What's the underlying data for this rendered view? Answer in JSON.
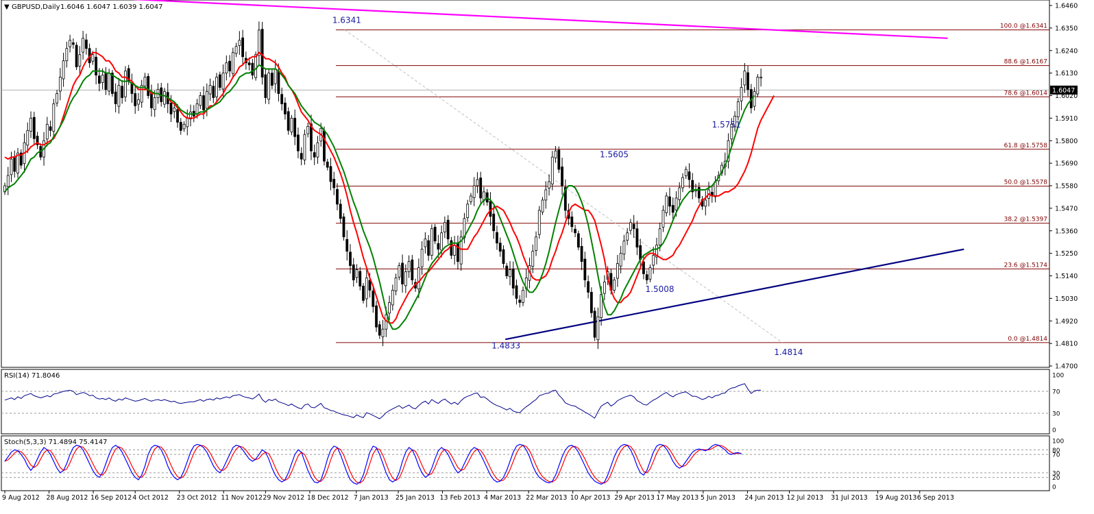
{
  "header": {
    "symbol_text": "GBPUSD,Daily",
    "ohlc_text": "1.6046 1.6047 1.6039 1.6047",
    "rsi_title": "RSI(14) 71.8046",
    "stoch_title": "Stoch(5,3,3) 71.4894 75.4147"
  },
  "colors": {
    "background": "#ffffff",
    "candle": "#000000",
    "ma_fast": "#ff0000",
    "ma_slow": "#008000",
    "fib": "#800000",
    "trend_upper": "#ff00ff",
    "trend_lower": "#000080",
    "label": "#1a1aa0",
    "rsi": "#00008b",
    "stoch_main": "#0000ff",
    "stoch_signal": "#ff0000",
    "grid": "#999999"
  },
  "chart_data": {
    "type": "candlestick",
    "symbol": "GBPUSD",
    "timeframe": "Daily",
    "last_price": "1.6047",
    "ylim": [
      1.47,
      1.646
    ],
    "y_ticks": [
      "1.6460",
      "1.6350",
      "1.6240",
      "1.6130",
      "1.6020",
      "1.5910",
      "1.5800",
      "1.5690",
      "1.5580",
      "1.5470",
      "1.5360",
      "1.5250",
      "1.5140",
      "1.5030",
      "1.4920",
      "1.4810",
      "1.4700"
    ],
    "x_ticks": [
      "9 Aug 2012",
      "28 Aug 2012",
      "16 Sep 2012",
      "4 Oct 2012",
      "23 Oct 2012",
      "11 Nov 2012",
      "29 Nov 2012",
      "18 Dec 2012",
      "7 Jan 2013",
      "25 Jan 2013",
      "13 Feb 2013",
      "4 Mar 2013",
      "22 Mar 2013",
      "10 Apr 2013",
      "29 Apr 2013",
      "17 May 2013",
      "5 Jun 2013",
      "24 Jun 2013",
      "12 Jul 2013",
      "31 Jul 2013",
      "19 Aug 2013",
      "6 Sep 2013"
    ],
    "swing_points": [
      {
        "date": "2013-01-02",
        "value": 1.6341,
        "text": "1.6341"
      },
      {
        "date": "2013-03-12",
        "value": 1.4833,
        "text": "1.4833"
      },
      {
        "date": "2013-05-01",
        "value": 1.5605,
        "text": "1.5605"
      },
      {
        "date": "2013-05-20",
        "value": 1.5008,
        "text": "1.5008"
      },
      {
        "date": "2013-06-17",
        "value": 1.5751,
        "text": "1.5751"
      },
      {
        "date": "2013-07-09",
        "value": 1.4814,
        "text": "1.4814"
      }
    ],
    "fibonacci": [
      {
        "level": 100.0,
        "price": 1.6341,
        "text": "100.0 @1.6341"
      },
      {
        "level": 88.6,
        "price": 1.6167,
        "text": "88.6 @1.6167"
      },
      {
        "level": 78.6,
        "price": 1.6014,
        "text": "78.6 @1.6014"
      },
      {
        "level": 61.8,
        "price": 1.5758,
        "text": "61.8 @1.5758"
      },
      {
        "level": 50.0,
        "price": 1.5578,
        "text": "50.0 @1.5578"
      },
      {
        "level": 38.2,
        "price": 1.5397,
        "text": "38.2 @1.5397"
      },
      {
        "level": 23.6,
        "price": 1.5174,
        "text": "23.6 @1.5174"
      },
      {
        "level": 0.0,
        "price": 1.4814,
        "text": "0.0 @1.4814"
      }
    ],
    "close_series": [
      1.558,
      1.563,
      1.571,
      1.565,
      1.574,
      1.568,
      1.579,
      1.585,
      1.591,
      1.581,
      1.578,
      1.572,
      1.58,
      1.588,
      1.585,
      1.598,
      1.603,
      1.611,
      1.619,
      1.625,
      1.629,
      1.627,
      1.616,
      1.622,
      1.63,
      1.625,
      1.618,
      1.622,
      1.612,
      1.608,
      1.612,
      1.605,
      1.613,
      1.603,
      1.598,
      1.607,
      1.601,
      1.614,
      1.609,
      1.603,
      1.597,
      1.6,
      1.607,
      1.611,
      1.602,
      1.596,
      1.601,
      1.605,
      1.599,
      1.604,
      1.598,
      1.593,
      1.596,
      1.589,
      1.585,
      1.588,
      1.591,
      1.594,
      1.592,
      1.598,
      1.602,
      1.595,
      1.604,
      1.607,
      1.601,
      1.611,
      1.606,
      1.613,
      1.618,
      1.614,
      1.623,
      1.626,
      1.629,
      1.621,
      1.618,
      1.617,
      1.612,
      1.622,
      1.634,
      1.611,
      1.601,
      1.613,
      1.607,
      1.615,
      1.603,
      1.598,
      1.593,
      1.585,
      1.591,
      1.582,
      1.575,
      1.571,
      1.583,
      1.587,
      1.575,
      1.572,
      1.579,
      1.586,
      1.57,
      1.567,
      1.56,
      1.557,
      1.549,
      1.542,
      1.533,
      1.526,
      1.519,
      1.512,
      1.517,
      1.509,
      1.502,
      1.513,
      1.507,
      1.499,
      1.489,
      1.485,
      1.488,
      1.495,
      1.501,
      1.507,
      1.513,
      1.519,
      1.51,
      1.516,
      1.521,
      1.512,
      1.508,
      1.518,
      1.527,
      1.532,
      1.524,
      1.537,
      1.531,
      1.527,
      1.535,
      1.54,
      1.532,
      1.524,
      1.529,
      1.521,
      1.533,
      1.542,
      1.549,
      1.553,
      1.558,
      1.561,
      1.552,
      1.555,
      1.55,
      1.543,
      1.536,
      1.53,
      1.526,
      1.52,
      1.514,
      1.517,
      1.508,
      1.503,
      1.501,
      1.507,
      1.513,
      1.519,
      1.526,
      1.533,
      1.546,
      1.551,
      1.556,
      1.56,
      1.572,
      1.575,
      1.566,
      1.558,
      1.546,
      1.542,
      1.538,
      1.535,
      1.528,
      1.521,
      1.512,
      1.506,
      1.496,
      1.484,
      1.494,
      1.505,
      1.511,
      1.516,
      1.507,
      1.512,
      1.52,
      1.525,
      1.531,
      1.535,
      1.54,
      1.537,
      1.528,
      1.522,
      1.515,
      1.512,
      1.518,
      1.524,
      1.529,
      1.537,
      1.546,
      1.553,
      1.548,
      1.545,
      1.552,
      1.557,
      1.562,
      1.566,
      1.561,
      1.555,
      1.556,
      1.552,
      1.548,
      1.551,
      1.556,
      1.553,
      1.56,
      1.563,
      1.568,
      1.57,
      1.58,
      1.588,
      1.592,
      1.599,
      1.606,
      1.614,
      1.605,
      1.596,
      1.604,
      1.611,
      1.611
    ],
    "ma_red": [
      1.572,
      1.571,
      1.572,
      1.572,
      1.573,
      1.573,
      1.574,
      1.575,
      1.577,
      1.578,
      1.579,
      1.578,
      1.578,
      1.579,
      1.58,
      1.581,
      1.584,
      1.587,
      1.592,
      1.597,
      1.602,
      1.607,
      1.61,
      1.612,
      1.616,
      1.619,
      1.621,
      1.623,
      1.623,
      1.622,
      1.621,
      1.619,
      1.619,
      1.617,
      1.614,
      1.613,
      1.611,
      1.611,
      1.61,
      1.609,
      1.607,
      1.605,
      1.605,
      1.605,
      1.605,
      1.603,
      1.603,
      1.603,
      1.602,
      1.602,
      1.601,
      1.599,
      1.598,
      1.596,
      1.594,
      1.592,
      1.591,
      1.591,
      1.591,
      1.592,
      1.593,
      1.593,
      1.595,
      1.597,
      1.597,
      1.599,
      1.601,
      1.603,
      1.606,
      1.608,
      1.611,
      1.613,
      1.616,
      1.617,
      1.619,
      1.62,
      1.621,
      1.621,
      1.623,
      1.622,
      1.62,
      1.62,
      1.619,
      1.618,
      1.616,
      1.613,
      1.611,
      1.607,
      1.605,
      1.602,
      1.598,
      1.594,
      1.592,
      1.59,
      1.587,
      1.585,
      1.584,
      1.583,
      1.581,
      1.578,
      1.575,
      1.572,
      1.568,
      1.564,
      1.559,
      1.553,
      1.546,
      1.54,
      1.535,
      1.529,
      1.523,
      1.518,
      1.513,
      1.509,
      1.504,
      1.499,
      1.494,
      1.492,
      1.491,
      1.491,
      1.493,
      1.497,
      1.5,
      1.503,
      1.506,
      1.508,
      1.51,
      1.511,
      1.513,
      1.515,
      1.516,
      1.518,
      1.52,
      1.522,
      1.524,
      1.526,
      1.527,
      1.529,
      1.529,
      1.528,
      1.527,
      1.527,
      1.527,
      1.53,
      1.533,
      1.535,
      1.538,
      1.541,
      1.544,
      1.546,
      1.547,
      1.548,
      1.547,
      1.546,
      1.543,
      1.54,
      1.536,
      1.533,
      1.529,
      1.524,
      1.52,
      1.516,
      1.513,
      1.512,
      1.512,
      1.513,
      1.514,
      1.517,
      1.522,
      1.526,
      1.531,
      1.535,
      1.54,
      1.545,
      1.548,
      1.549,
      1.548,
      1.547,
      1.546,
      1.546,
      1.544,
      1.541,
      1.535,
      1.529,
      1.522,
      1.513,
      1.507,
      1.503,
      1.501,
      1.501,
      1.503,
      1.504,
      1.506,
      1.51,
      1.514,
      1.518,
      1.522,
      1.524,
      1.525,
      1.525,
      1.524,
      1.523,
      1.522,
      1.522,
      1.523,
      1.524,
      1.527,
      1.529,
      1.532,
      1.535,
      1.538,
      1.541,
      1.545,
      1.548,
      1.551,
      1.552,
      1.554,
      1.553,
      1.553,
      1.553,
      1.554,
      1.555,
      1.555,
      1.556,
      1.557,
      1.559,
      1.562,
      1.565,
      1.569,
      1.574,
      1.58,
      1.586,
      1.59,
      1.593,
      1.596,
      1.599,
      1.602
    ],
    "ma_green": [
      1.555,
      1.557,
      1.558,
      1.559,
      1.561,
      1.563,
      1.565,
      1.568,
      1.571,
      1.572,
      1.574,
      1.575,
      1.576,
      1.578,
      1.579,
      1.582,
      1.584,
      1.587,
      1.59,
      1.594,
      1.598,
      1.601,
      1.603,
      1.606,
      1.609,
      1.611,
      1.612,
      1.614,
      1.614,
      1.614,
      1.614,
      1.613,
      1.613,
      1.612,
      1.611,
      1.61,
      1.609,
      1.609,
      1.609,
      1.608,
      1.607,
      1.606,
      1.606,
      1.606,
      1.605,
      1.604,
      1.603,
      1.603,
      1.602,
      1.602,
      1.601,
      1.6,
      1.599,
      1.597,
      1.595,
      1.594,
      1.593,
      1.593,
      1.593,
      1.593,
      1.594,
      1.594,
      1.595,
      1.596,
      1.597,
      1.598,
      1.599,
      1.601,
      1.603,
      1.604,
      1.606,
      1.608,
      1.611,
      1.612,
      1.613,
      1.613,
      1.614,
      1.615,
      1.617,
      1.616,
      1.615,
      1.615,
      1.615,
      1.615,
      1.614,
      1.612,
      1.61,
      1.607,
      1.605,
      1.603,
      1.6,
      1.597,
      1.595,
      1.593,
      1.591,
      1.589,
      1.588,
      1.587,
      1.585,
      1.583,
      1.58,
      1.577,
      1.573,
      1.569,
      1.565,
      1.56,
      1.555,
      1.55,
      1.546,
      1.541,
      1.536,
      1.532,
      1.528,
      1.523,
      1.517,
      1.511,
      1.504,
      1.497,
      1.491,
      1.488,
      1.488,
      1.489,
      1.491,
      1.493,
      1.496,
      1.499,
      1.502,
      1.505,
      1.509,
      1.513,
      1.517,
      1.52,
      1.522,
      1.524,
      1.526,
      1.528,
      1.529,
      1.53,
      1.53,
      1.53,
      1.531,
      1.533,
      1.536,
      1.539,
      1.542,
      1.546,
      1.549,
      1.551,
      1.552,
      1.551,
      1.549,
      1.546,
      1.542,
      1.538,
      1.534,
      1.53,
      1.525,
      1.52,
      1.515,
      1.511,
      1.508,
      1.506,
      1.506,
      1.508,
      1.511,
      1.515,
      1.52,
      1.526,
      1.533,
      1.54,
      1.546,
      1.552,
      1.556,
      1.558,
      1.558,
      1.557,
      1.554,
      1.55,
      1.545,
      1.539,
      1.531,
      1.523,
      1.514,
      1.506,
      1.499,
      1.495,
      1.495,
      1.497,
      1.5,
      1.503,
      1.507,
      1.51,
      1.513,
      1.516,
      1.519,
      1.522,
      1.524,
      1.525,
      1.526,
      1.527,
      1.527,
      1.528,
      1.53,
      1.533,
      1.537,
      1.541,
      1.545,
      1.548,
      1.551,
      1.553,
      1.555,
      1.556,
      1.556,
      1.556,
      1.556,
      1.556,
      1.557,
      1.558,
      1.56,
      1.562,
      1.565,
      1.568,
      1.572,
      1.577,
      1.582,
      1.587,
      1.591,
      1.595,
      1.598,
      1.6,
      1.602
    ],
    "rsi": {
      "title": "RSI(14) 71.8046",
      "ylim": [
        0,
        100
      ],
      "ticks": [
        "100",
        "70",
        "30",
        "0"
      ],
      "levels": [
        70,
        30
      ],
      "values": [
        54,
        56,
        58,
        55,
        60,
        57,
        62,
        64,
        66,
        62,
        60,
        58,
        60,
        62,
        60,
        65,
        66,
        68,
        70,
        71,
        72,
        70,
        64,
        66,
        68,
        66,
        62,
        63,
        58,
        56,
        57,
        55,
        58,
        54,
        52,
        56,
        54,
        58,
        56,
        54,
        52,
        53,
        55,
        57,
        54,
        52,
        54,
        55,
        53,
        55,
        53,
        51,
        52,
        49,
        48,
        49,
        50,
        51,
        51,
        53,
        55,
        52,
        55,
        56,
        54,
        58,
        56,
        58,
        60,
        58,
        62,
        63,
        64,
        61,
        59,
        58,
        56,
        60,
        65,
        55,
        50,
        55,
        53,
        56,
        51,
        49,
        47,
        44,
        47,
        43,
        40,
        38,
        45,
        47,
        41,
        40,
        44,
        48,
        40,
        38,
        35,
        34,
        31,
        29,
        27,
        26,
        24,
        22,
        27,
        24,
        22,
        31,
        29,
        26,
        23,
        20,
        25,
        31,
        35,
        38,
        41,
        44,
        39,
        42,
        45,
        40,
        38,
        44,
        49,
        52,
        47,
        55,
        51,
        48,
        53,
        56,
        51,
        47,
        50,
        46,
        53,
        58,
        61,
        63,
        66,
        67,
        59,
        60,
        56,
        51,
        47,
        44,
        42,
        39,
        36,
        39,
        34,
        32,
        31,
        37,
        42,
        46,
        51,
        55,
        62,
        64,
        66,
        67,
        71,
        72,
        63,
        57,
        49,
        46,
        44,
        43,
        39,
        36,
        32,
        29,
        25,
        21,
        33,
        43,
        47,
        50,
        43,
        47,
        53,
        56,
        59,
        61,
        63,
        60,
        53,
        50,
        46,
        45,
        50,
        54,
        57,
        61,
        65,
        68,
        63,
        60,
        64,
        66,
        68,
        69,
        65,
        61,
        61,
        58,
        55,
        57,
        61,
        58,
        62,
        63,
        66,
        67,
        73,
        76,
        77,
        80,
        82,
        84,
        74,
        66,
        71,
        72,
        72
      ]
    },
    "stochastic": {
      "title": "Stoch(5,3,3) 71.4894 75.4147",
      "ylim": [
        0,
        100
      ],
      "ticks": [
        "100",
        "80",
        "70",
        "30",
        "20",
        "0"
      ],
      "levels": [
        80,
        70,
        30,
        20
      ],
      "main": [
        55,
        65,
        75,
        80,
        78,
        70,
        60,
        45,
        35,
        45,
        60,
        75,
        85,
        80,
        70,
        55,
        40,
        30,
        35,
        50,
        70,
        85,
        90,
        88,
        80,
        65,
        50,
        35,
        25,
        20,
        30,
        50,
        70,
        85,
        90,
        85,
        75,
        60,
        45,
        30,
        20,
        15,
        25,
        45,
        70,
        85,
        90,
        88,
        80,
        65,
        45,
        30,
        20,
        15,
        20,
        35,
        55,
        75,
        88,
        92,
        90,
        85,
        75,
        60,
        45,
        35,
        30,
        40,
        55,
        70,
        85,
        90,
        88,
        80,
        70,
        60,
        55,
        60,
        70,
        80,
        75,
        60,
        40,
        25,
        15,
        10,
        15,
        30,
        50,
        70,
        80,
        75,
        55,
        35,
        20,
        10,
        8,
        15,
        35,
        60,
        80,
        88,
        85,
        70,
        50,
        30,
        15,
        8,
        5,
        10,
        25,
        50,
        75,
        88,
        85,
        70,
        50,
        30,
        15,
        10,
        15,
        30,
        55,
        75,
        85,
        80,
        65,
        45,
        30,
        20,
        25,
        40,
        60,
        78,
        85,
        80,
        70,
        55,
        40,
        30,
        35,
        50,
        65,
        78,
        85,
        82,
        70,
        55,
        40,
        25,
        15,
        10,
        12,
        20,
        35,
        55,
        75,
        88,
        92,
        90,
        80,
        65,
        45,
        30,
        20,
        15,
        10,
        8,
        12,
        25,
        45,
        65,
        80,
        88,
        90,
        85,
        75,
        60,
        45,
        30,
        20,
        12,
        8,
        5,
        10,
        25,
        45,
        65,
        80,
        88,
        92,
        90,
        80,
        65,
        45,
        30,
        25,
        35,
        55,
        75,
        88,
        92,
        90,
        82,
        70,
        55,
        45,
        40,
        45,
        55,
        65,
        75,
        80,
        82,
        80,
        78,
        82,
        88,
        92,
        90,
        85,
        80,
        72,
        70,
        73,
        74,
        71
      ]
    },
    "trendlines": [
      {
        "name": "upper",
        "from": {
          "date": "2012-08-09",
          "value": 1.652
        },
        "to": {
          "date": "2013-09-18",
          "value": 1.63
        }
      },
      {
        "name": "lower",
        "from": {
          "date": "2013-03-12",
          "value": 1.483
        },
        "to": {
          "date": "2013-09-25",
          "value": 1.527
        }
      }
    ]
  }
}
